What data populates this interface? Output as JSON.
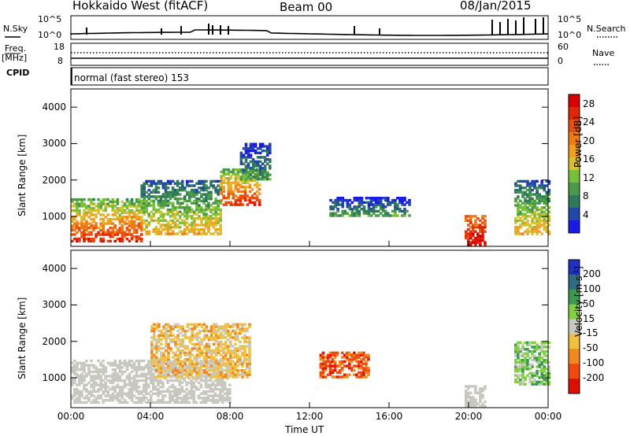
{
  "header": {
    "title": "Hokkaido West (fitACF)",
    "beam": "Beam 00",
    "date": "08/Jan/2015"
  },
  "small_panels": {
    "nsky_label": "N.Sky",
    "nsearch_label": "N.Search",
    "noise_tick_top": "10^5",
    "noise_tick_bottom": "10^0",
    "freq_label_1": "Freq.",
    "freq_label_2": "[MHz]",
    "freq_tick_top": "18",
    "freq_tick_bottom": "8",
    "nave_label": "Nave",
    "nave_tick_top": "60",
    "nave_tick_bottom": "0",
    "cpid_label": "CPID",
    "cpid_text": "normal (fast stereo) 153"
  },
  "chart_data": [
    {
      "type": "heatmap",
      "name": "power",
      "ylabel": "Slant Range [km]",
      "ylim": [
        180,
        4500
      ],
      "yticks": [
        "1000",
        "2000",
        "3000",
        "4000"
      ],
      "ytick_values": [
        1000,
        2000,
        3000,
        4000
      ],
      "xlim_hours": [
        0,
        24
      ],
      "colorbar": {
        "label": "Power [dB]",
        "ticks": [
          "4",
          "8",
          "12",
          "16",
          "20",
          "24",
          "28"
        ],
        "tick_values": [
          4,
          8,
          12,
          16,
          20,
          24,
          28
        ],
        "range": [
          0,
          30
        ],
        "colors": [
          "#1a1ae6",
          "#2448a8",
          "#2e7a5a",
          "#4a9a4a",
          "#7abf3a",
          "#d8c030",
          "#f0a020",
          "#ef7a18",
          "#e85010",
          "#e02808",
          "#d80000"
        ]
      },
      "regions": [
        {
          "t0": 0.0,
          "t1": 3.5,
          "r0": 300,
          "r1": 1500,
          "level": "strong"
        },
        {
          "t0": 3.5,
          "t1": 7.5,
          "r0": 500,
          "r1": 2000,
          "level": "medium"
        },
        {
          "t0": 7.5,
          "t1": 9.5,
          "r0": 1300,
          "r1": 2300,
          "level": "strong"
        },
        {
          "t0": 8.5,
          "t1": 10.0,
          "r0": 2000,
          "r1": 3000,
          "level": "weak"
        },
        {
          "t0": 13.0,
          "t1": 17.0,
          "r0": 1000,
          "r1": 1500,
          "level": "weak"
        },
        {
          "t0": 19.8,
          "t1": 20.8,
          "r0": 200,
          "r1": 1000,
          "level": "strongest"
        },
        {
          "t0": 22.3,
          "t1": 24.0,
          "r0": 500,
          "r1": 2000,
          "level": "medium"
        }
      ]
    },
    {
      "type": "heatmap",
      "name": "velocity",
      "ylabel": "Slant Range [km]",
      "xlabel": "Time UT",
      "xticks": [
        "00:00",
        "04:00",
        "08:00",
        "12:00",
        "16:00",
        "20:00",
        "00:00"
      ],
      "xtick_hours": [
        0,
        4,
        8,
        12,
        16,
        20,
        24
      ],
      "ylim": [
        180,
        4500
      ],
      "yticks": [
        "1000",
        "2000",
        "3000",
        "4000"
      ],
      "ytick_values": [
        1000,
        2000,
        3000,
        4000
      ],
      "colorbar": {
        "label": "Velocity [m s^-1]",
        "ticks": [
          "200",
          "100",
          "50",
          "15",
          "-15",
          "-50",
          "-100",
          "-200"
        ],
        "colors": [
          "#2030c0",
          "#2e6a80",
          "#3c9a50",
          "#80d040",
          "#c8c8c0",
          "#f0c040",
          "#f08a20",
          "#ee4a10",
          "#e01000"
        ]
      },
      "regions": [
        {
          "t0": 0.0,
          "t1": 8.0,
          "r0": 300,
          "r1": 1500,
          "level": "ground"
        },
        {
          "t0": 4.0,
          "t1": 9.0,
          "r0": 1000,
          "r1": 2500,
          "level": "neg_small"
        },
        {
          "t0": 12.5,
          "t1": 15.0,
          "r0": 1000,
          "r1": 1700,
          "level": "neg_large"
        },
        {
          "t0": 19.8,
          "t1": 20.8,
          "r0": 200,
          "r1": 800,
          "level": "ground"
        },
        {
          "t0": 22.3,
          "t1": 24.0,
          "r0": 800,
          "r1": 2000,
          "level": "pos_small"
        }
      ]
    }
  ]
}
